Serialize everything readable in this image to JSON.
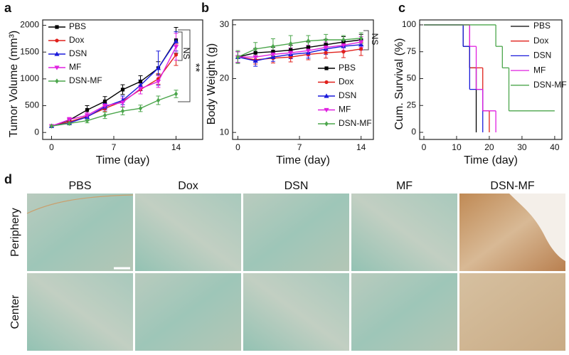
{
  "chart_data": [
    {
      "type": "line",
      "panel_label": "a",
      "xlabel": "Time (day)",
      "ylabel": "Tumor Volume (mm³)",
      "x": [
        0,
        2,
        4,
        6,
        8,
        10,
        12,
        14
      ],
      "xlim": [
        -1,
        17
      ],
      "xticks": [
        0,
        7,
        14
      ],
      "ylim": [
        -130,
        2100
      ],
      "yticks": [
        0,
        500,
        1000,
        1500,
        2000
      ],
      "legend": "upper left",
      "series": [
        {
          "name": "PBS",
          "color": "#000000",
          "marker": "square",
          "values": [
            120,
            230,
            420,
            580,
            800,
            950,
            1200,
            1720
          ],
          "errors": [
            20,
            30,
            80,
            90,
            90,
            110,
            120,
            240
          ]
        },
        {
          "name": "Dox",
          "color": "#e0201b",
          "marker": "circle",
          "values": [
            120,
            200,
            300,
            450,
            580,
            800,
            1000,
            1450
          ],
          "errors": [
            20,
            30,
            40,
            60,
            60,
            80,
            100,
            200
          ]
        },
        {
          "name": "DSN",
          "color": "#1a1adb",
          "marker": "triangle-up",
          "values": [
            120,
            180,
            290,
            480,
            600,
            880,
            1200,
            1700
          ],
          "errors": [
            20,
            30,
            50,
            60,
            80,
            100,
            320,
            180
          ]
        },
        {
          "name": "MF",
          "color": "#e020e0",
          "marker": "triangle-down",
          "values": [
            120,
            240,
            320,
            500,
            560,
            820,
            950,
            1600
          ],
          "errors": [
            20,
            40,
            50,
            60,
            80,
            100,
            110,
            250
          ]
        },
        {
          "name": "DSN-MF",
          "color": "#4ca64c",
          "marker": "diamond",
          "values": [
            120,
            170,
            220,
            320,
            400,
            450,
            600,
            720
          ],
          "errors": [
            20,
            30,
            40,
            60,
            70,
            60,
            80,
            70
          ]
        }
      ],
      "annotations": [
        "NS",
        "**"
      ]
    },
    {
      "type": "line",
      "panel_label": "b",
      "xlabel": "Time (day)",
      "ylabel": "Body Weight (g)",
      "x": [
        0,
        2,
        4,
        6,
        8,
        10,
        12,
        14
      ],
      "xlim": [
        -0.6,
        15.4
      ],
      "xticks": [
        0,
        7,
        14
      ],
      "ylim": [
        8.7,
        30.9
      ],
      "yticks": [
        10,
        20,
        30
      ],
      "legend": "lower right",
      "series": [
        {
          "name": "PBS",
          "color": "#000000",
          "marker": "square",
          "values": [
            24,
            24.8,
            25,
            25.3,
            25.8,
            26.3,
            26.8,
            27.2
          ],
          "errors": [
            1,
            0.8,
            0.8,
            0.9,
            1,
            1,
            1,
            1
          ]
        },
        {
          "name": "Dox",
          "color": "#e0201b",
          "marker": "circle",
          "values": [
            24,
            23.5,
            23.8,
            24,
            24.5,
            24.8,
            25,
            25.5
          ],
          "errors": [
            1,
            0.8,
            0.9,
            0.9,
            1,
            1,
            1.1,
            1.2
          ]
        },
        {
          "name": "DSN",
          "color": "#1a1adb",
          "marker": "triangle-up",
          "values": [
            24,
            23.3,
            24,
            24.5,
            24.8,
            25.5,
            26,
            26.3
          ],
          "errors": [
            1,
            1,
            0.8,
            0.8,
            1,
            1,
            1,
            1
          ]
        },
        {
          "name": "MF",
          "color": "#e020e0",
          "marker": "triangle-down",
          "values": [
            24,
            24,
            24.5,
            24.8,
            25.2,
            25.8,
            26.2,
            26.8
          ],
          "errors": [
            1,
            0.8,
            0.8,
            0.9,
            1,
            1,
            1,
            1
          ]
        },
        {
          "name": "DSN-MF",
          "color": "#4ca64c",
          "marker": "diamond",
          "values": [
            24,
            25.5,
            26,
            26.5,
            27,
            27.2,
            27.2,
            27.5
          ],
          "errors": [
            1.2,
            1.2,
            1.4,
            1.5,
            1,
            1,
            0.8,
            1
          ]
        }
      ],
      "annotations": [
        "NS"
      ]
    },
    {
      "type": "step",
      "panel_label": "c",
      "xlabel": "Time (day)",
      "ylabel": "Cum. Survival (%)",
      "xlim": [
        -1.3,
        42.2
      ],
      "xticks": [
        0,
        10,
        20,
        30,
        40
      ],
      "ylim": [
        -6.6,
        104.6
      ],
      "yticks": [
        0,
        25,
        50,
        75,
        100
      ],
      "legend": "upper right",
      "series": [
        {
          "name": "PBS",
          "color": "#000000",
          "x": [
            0,
            12,
            14,
            16
          ],
          "values": [
            100,
            80,
            60,
            0
          ]
        },
        {
          "name": "Dox",
          "color": "#e0201b",
          "x": [
            0,
            14,
            18,
            20
          ],
          "values": [
            100,
            60,
            20,
            0
          ]
        },
        {
          "name": "DSN",
          "color": "#1a1adb",
          "x": [
            0,
            12,
            14,
            18
          ],
          "values": [
            100,
            80,
            40,
            0
          ]
        },
        {
          "name": "MF",
          "color": "#e020e0",
          "x": [
            0,
            14,
            16,
            18,
            22
          ],
          "values": [
            100,
            80,
            40,
            20,
            0
          ]
        },
        {
          "name": "DSN-MF",
          "color": "#4ca64c",
          "x": [
            0,
            22,
            24,
            26,
            40
          ],
          "values": [
            100,
            80,
            60,
            20,
            20
          ]
        }
      ]
    }
  ],
  "image_panel": {
    "panel_label": "d",
    "columns": [
      "PBS",
      "Dox",
      "DSN",
      "MF",
      "DSN-MF"
    ],
    "rows": [
      "Periphery",
      "Center"
    ]
  }
}
